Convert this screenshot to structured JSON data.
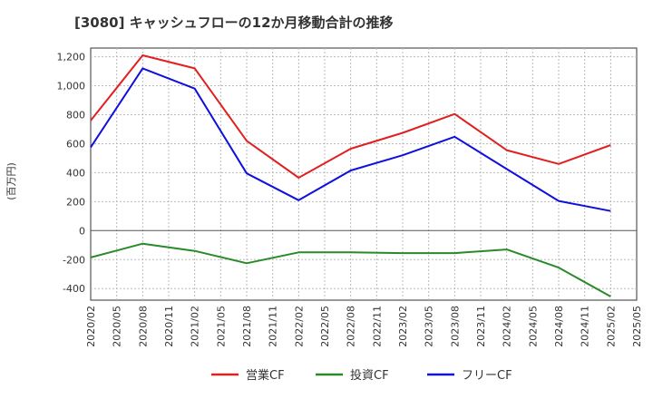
{
  "chart_data": {
    "type": "line",
    "title": "[3080]  キャッシュフローの12か月移動合計の推移",
    "ylabel": "(百万円)",
    "xlabel": "",
    "ylim": [
      -480,
      1260
    ],
    "yticks": [
      -400,
      -200,
      0,
      200,
      400,
      600,
      800,
      1000,
      1200
    ],
    "ytick_labels": [
      "-400",
      "-200",
      "0",
      "200",
      "400",
      "600",
      "800",
      "1,000",
      "1,200"
    ],
    "x_ticks": [
      "2020/02",
      "2020/05",
      "2020/08",
      "2020/11",
      "2021/02",
      "2021/05",
      "2021/08",
      "2021/11",
      "2022/02",
      "2022/05",
      "2022/08",
      "2022/11",
      "2023/02",
      "2023/05",
      "2023/08",
      "2023/11",
      "2024/02",
      "2024/05",
      "2024/08",
      "2024/11",
      "2025/02",
      "2025/05"
    ],
    "x": [
      "2020/02",
      "2020/08",
      "2021/02",
      "2021/08",
      "2022/02",
      "2022/08",
      "2023/02",
      "2023/08",
      "2024/02",
      "2024/08",
      "2025/02"
    ],
    "grid": true,
    "legend_position": "bottom",
    "series": [
      {
        "name": "営業CF",
        "color": "#e02020",
        "values": [
          760,
          1210,
          1120,
          620,
          365,
          565,
          675,
          805,
          555,
          460,
          590
        ]
      },
      {
        "name": "投資CF",
        "color": "#2a8a2a",
        "values": [
          -185,
          -90,
          -140,
          -225,
          -150,
          -150,
          -155,
          -155,
          -130,
          -255,
          -455
        ]
      },
      {
        "name": "フリーCF",
        "color": "#1010dd",
        "values": [
          575,
          1120,
          980,
          395,
          210,
          415,
          520,
          648,
          425,
          205,
          135
        ]
      }
    ]
  }
}
